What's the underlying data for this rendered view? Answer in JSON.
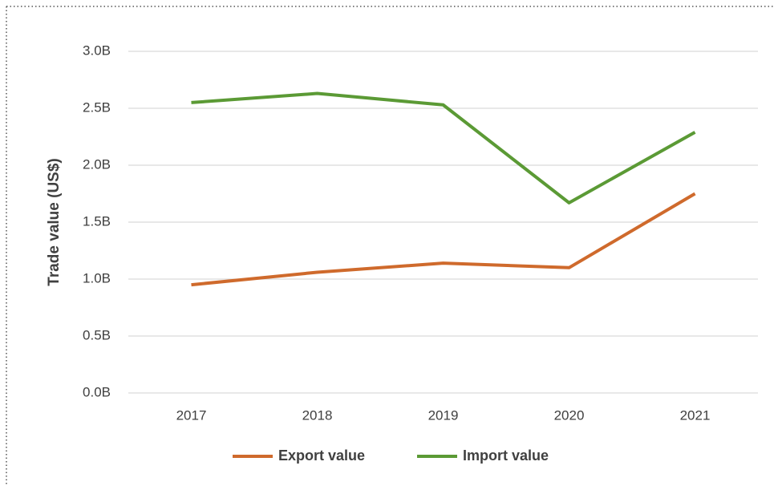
{
  "chart_data": {
    "type": "line",
    "y_label": "Trade value (US$)",
    "categories": [
      "2017",
      "2018",
      "2019",
      "2020",
      "2021"
    ],
    "series": [
      {
        "name": "Export value",
        "color": "#cf6a2c",
        "values": [
          950000000,
          1060000000,
          1140000000,
          1100000000,
          1750000000
        ]
      },
      {
        "name": "Import value",
        "color": "#5b9a35",
        "values": [
          2550000000,
          2630000000,
          2530000000,
          1670000000,
          2290000000
        ]
      }
    ],
    "ylim": [
      0,
      3000000000
    ],
    "yticks": [
      {
        "value": 0,
        "label": "0.0B"
      },
      {
        "value": 500000000,
        "label": "0.5B"
      },
      {
        "value": 1000000000,
        "label": "1.0B"
      },
      {
        "value": 1500000000,
        "label": "1.5B"
      },
      {
        "value": 2000000000,
        "label": "2.0B"
      },
      {
        "value": 2500000000,
        "label": "2.5B"
      },
      {
        "value": 3000000000,
        "label": "3.0B"
      }
    ],
    "grid": true,
    "legend": "bottom"
  }
}
